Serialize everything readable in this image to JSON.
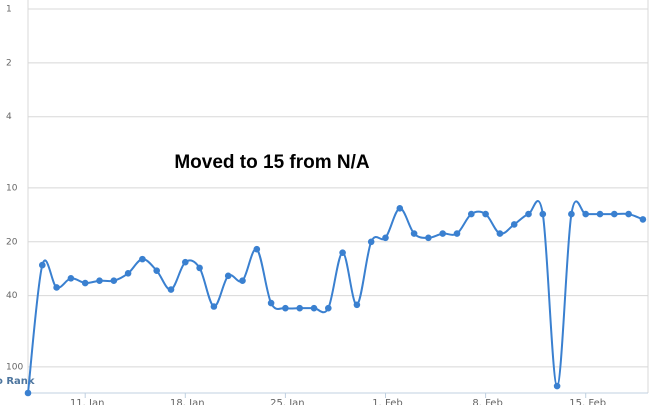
{
  "chart_data": {
    "type": "line",
    "annotation": "Moved to 15 from N/A",
    "ylabel": "o Rank",
    "categories": [
      null,
      null,
      null,
      null,
      "11. Jan",
      null,
      null,
      null,
      null,
      null,
      null,
      "18. Jan",
      null,
      null,
      null,
      null,
      null,
      null,
      "25. Jan",
      null,
      null,
      null,
      null,
      null,
      null,
      "1. Feb",
      null,
      null,
      null,
      null,
      null,
      null,
      "8. Feb",
      null,
      null,
      null,
      null,
      null,
      null,
      "15. Feb",
      null,
      null,
      null,
      null
    ],
    "series": [
      {
        "color": "#3a80d0",
        "values": [
          140,
          27,
          36,
          32,
          34,
          33,
          33,
          30,
          25,
          29,
          37,
          26,
          28,
          46,
          31,
          33,
          22,
          44,
          47,
          47,
          47,
          47,
          23,
          45,
          20,
          19,
          13,
          18,
          19,
          18,
          18,
          14,
          14,
          18,
          16,
          14,
          14,
          128,
          14,
          14,
          14,
          14,
          14,
          15
        ]
      }
    ],
    "ylim": [
      1,
      140
    ],
    "yticks": [
      1,
      2,
      4,
      10,
      20,
      40,
      100
    ],
    "log_y": true,
    "reversed_y": true,
    "grid": true
  }
}
